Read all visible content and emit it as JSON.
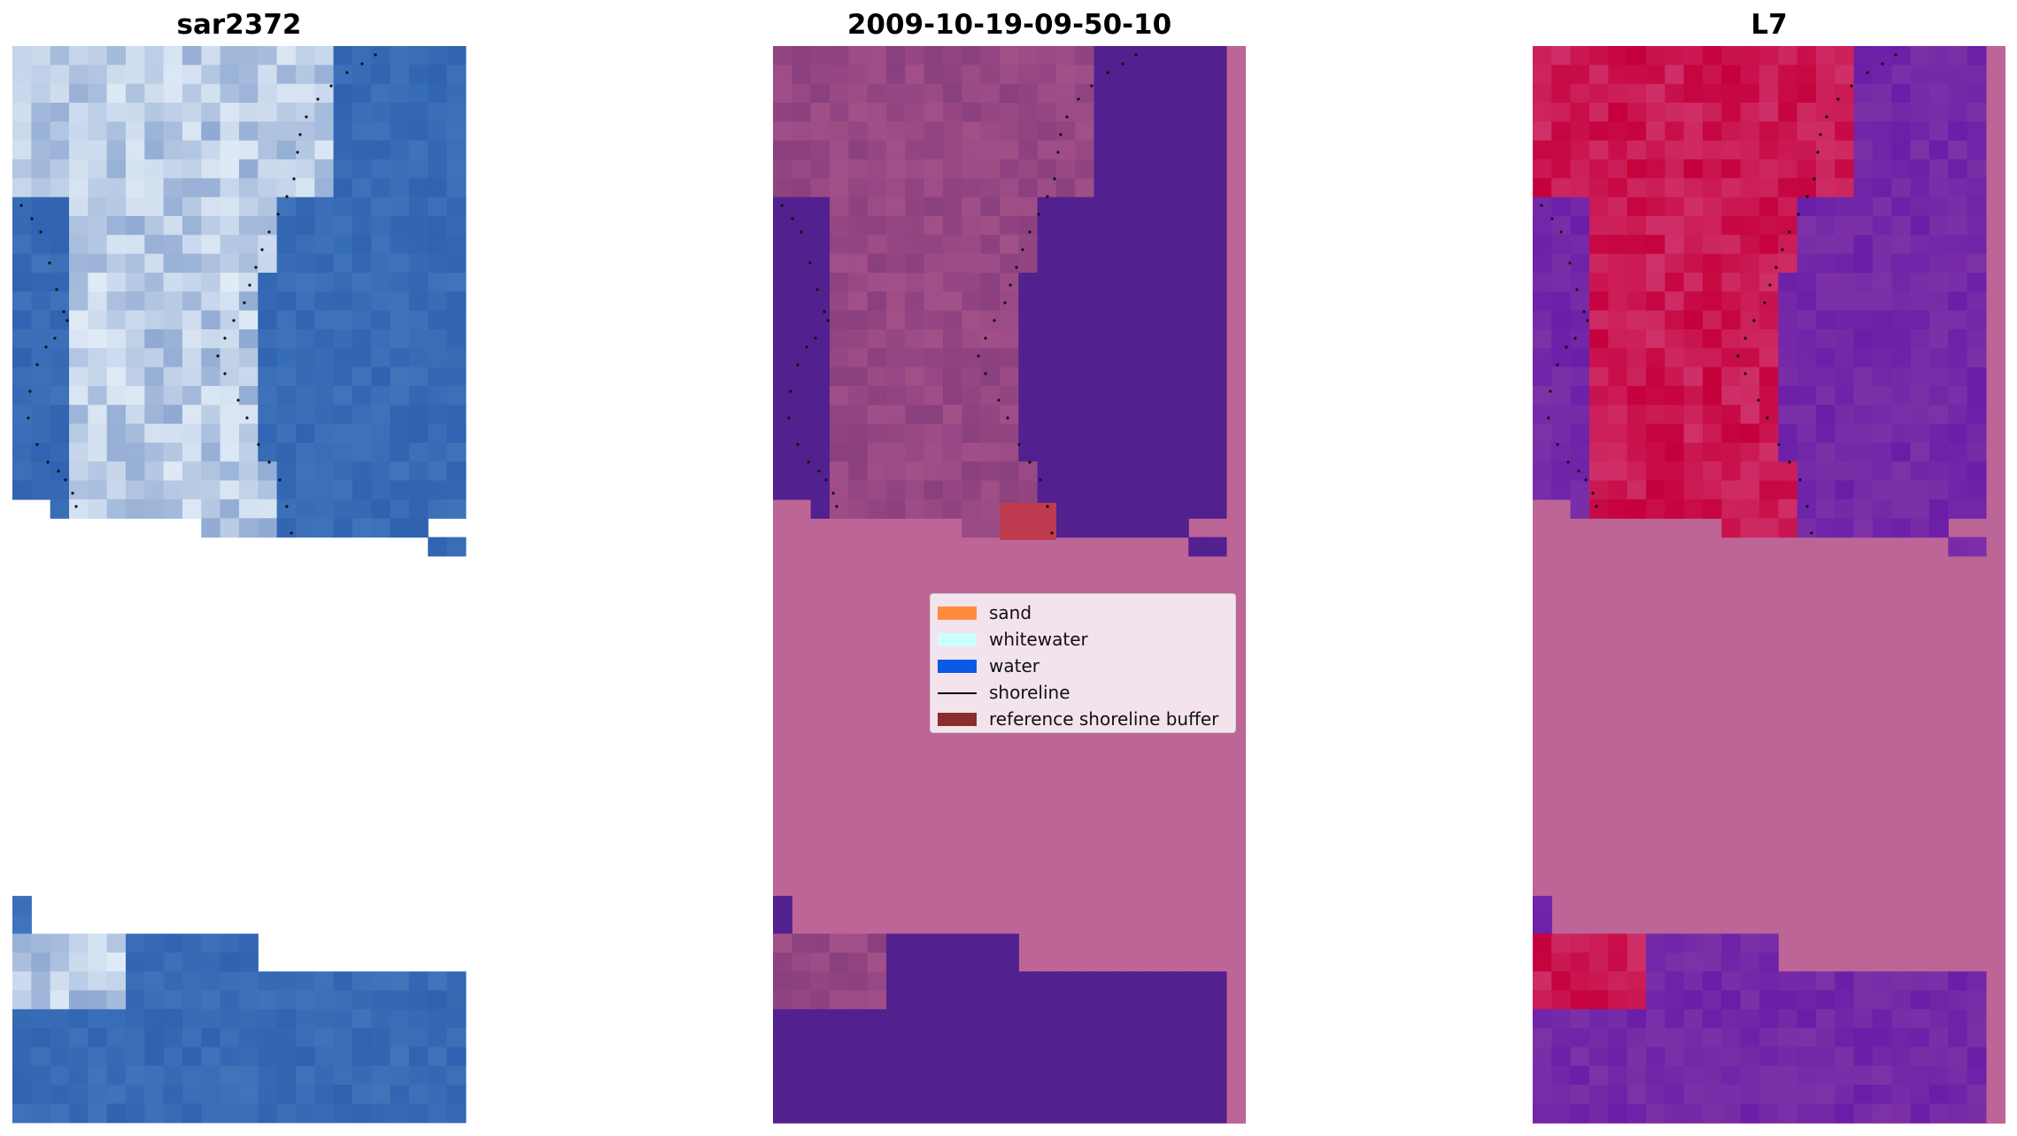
{
  "panels": [
    {
      "title": "sar2372",
      "kind": "rgb"
    },
    {
      "title": "2009-10-19-09-50-10",
      "kind": "classified"
    },
    {
      "title": "L7",
      "kind": "mndwi"
    }
  ],
  "legend": {
    "items": [
      {
        "label": "sand",
        "type": "patch",
        "color": "#ff8c3c"
      },
      {
        "label": "whitewater",
        "type": "patch",
        "color": "#ccffff"
      },
      {
        "label": "water",
        "type": "patch",
        "color": "#0a5ae6"
      },
      {
        "label": "shoreline",
        "type": "line",
        "color": "#000000"
      },
      {
        "label": "reference shoreline buffer",
        "type": "patch",
        "color": "#8b2d2d"
      }
    ]
  },
  "colors": {
    "nodata_overlay": "#bd6596",
    "water_class": "#52208f",
    "sand_land": "#c5003c",
    "water_index": "#6a1ea8",
    "rgb_water": "#2f62b0",
    "rgb_bright": "#f4fbff"
  }
}
